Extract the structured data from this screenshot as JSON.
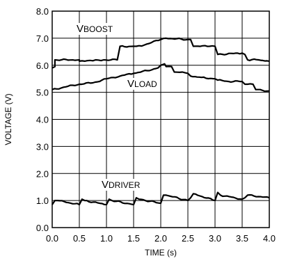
{
  "chart_data": {
    "type": "line",
    "title": "",
    "xlabel": "TIME (s)",
    "ylabel": "VOLTAGE (V)",
    "xlim": [
      0,
      4
    ],
    "ylim": [
      0,
      8
    ],
    "x_ticks": [
      "0.0",
      "0.5",
      "1.0",
      "1.5",
      "2.0",
      "2.5",
      "3.0",
      "3.5",
      "4.0"
    ],
    "y_ticks": [
      "0.0",
      "1.0",
      "2.0",
      "3.0",
      "4.0",
      "5.0",
      "6.0",
      "7.0",
      "8.0"
    ],
    "grid": true,
    "line_color": "#000000",
    "series": [
      {
        "name": "VBOOST",
        "label_main": "V",
        "label_sub": "BOOST",
        "x": [
          0.0,
          0.05,
          0.05,
          0.5,
          0.5,
          0.6,
          0.7,
          0.8,
          0.95,
          1.2,
          1.25,
          1.5,
          1.55,
          1.7,
          2.0,
          2.1,
          2.5,
          2.55,
          2.6,
          2.9,
          3.0,
          3.05,
          3.5,
          3.55,
          3.6,
          3.8,
          4.0
        ],
        "values": [
          5.9,
          5.95,
          6.2,
          6.2,
          6.15,
          6.15,
          6.18,
          6.2,
          6.2,
          6.2,
          6.7,
          6.7,
          6.7,
          6.75,
          6.95,
          7.0,
          6.95,
          6.95,
          6.7,
          6.7,
          6.7,
          6.4,
          6.45,
          6.4,
          6.2,
          6.2,
          6.15
        ]
      },
      {
        "name": "VLOAD",
        "label_main": "V",
        "label_sub": "LOAD",
        "x": [
          0.0,
          0.25,
          0.5,
          0.75,
          1.0,
          1.25,
          1.5,
          1.75,
          1.95,
          2.0,
          2.07,
          2.1,
          2.2,
          2.25,
          2.4,
          2.5,
          2.55,
          2.75,
          3.0,
          3.05,
          3.25,
          3.5,
          3.55,
          3.7,
          3.75,
          4.0
        ],
        "values": [
          5.1,
          5.2,
          5.3,
          5.35,
          5.5,
          5.6,
          5.7,
          5.8,
          5.9,
          6.0,
          6.05,
          5.95,
          5.95,
          5.75,
          5.75,
          5.7,
          5.6,
          5.55,
          5.5,
          5.45,
          5.4,
          5.4,
          5.3,
          5.3,
          5.1,
          5.05
        ]
      },
      {
        "name": "VDRIVER",
        "label_main": "V",
        "label_sub": "DRIVER",
        "x": [
          0.0,
          0.05,
          0.1,
          0.5,
          0.55,
          0.6,
          1.0,
          1.05,
          1.1,
          1.5,
          1.55,
          1.6,
          2.0,
          2.05,
          2.1,
          2.5,
          2.55,
          2.6,
          3.0,
          3.05,
          3.1,
          3.5,
          3.55,
          3.6,
          4.0
        ],
        "values": [
          0.85,
          1.0,
          1.0,
          0.85,
          1.05,
          1.0,
          0.85,
          1.05,
          1.0,
          0.85,
          1.1,
          1.05,
          0.9,
          1.2,
          1.2,
          1.0,
          1.1,
          1.25,
          1.0,
          1.3,
          1.2,
          1.05,
          1.1,
          1.2,
          1.1
        ]
      }
    ]
  }
}
